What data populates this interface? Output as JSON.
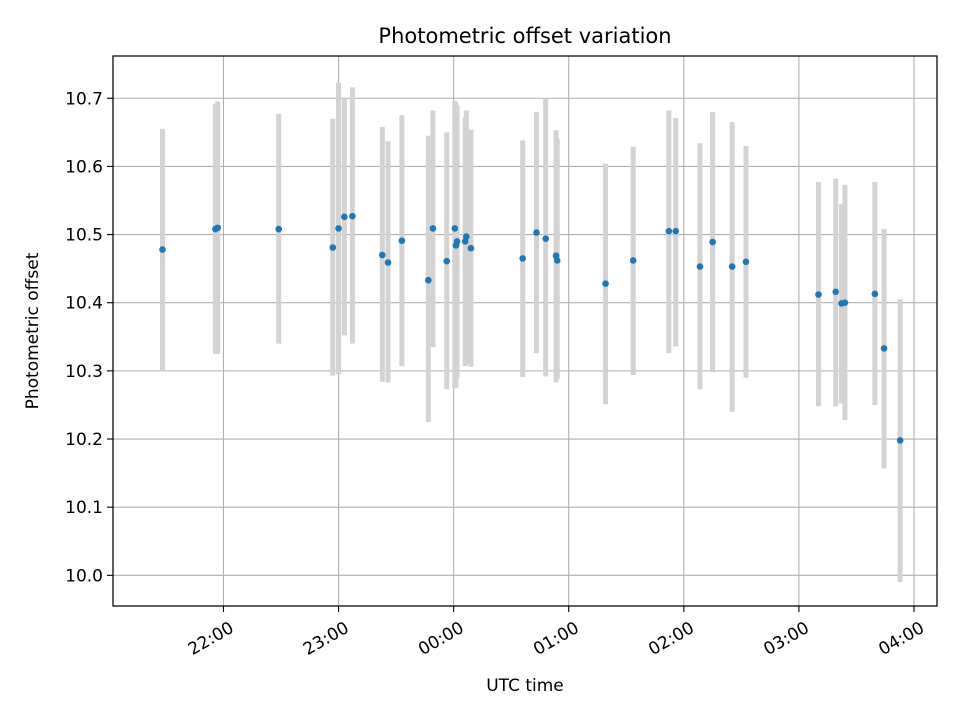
{
  "chart_data": {
    "type": "scatter",
    "title": "Photometric offset variation",
    "xlabel": "UTC time",
    "ylabel": "Photometric offset",
    "grid": true,
    "x_ticks": [
      "22:00",
      "23:00",
      "00:00",
      "01:00",
      "02:00",
      "03:00",
      "04:00"
    ],
    "y_ticks": [
      "10.0",
      "10.1",
      "10.2",
      "10.3",
      "10.4",
      "10.5",
      "10.6",
      "10.7"
    ],
    "x_unit": "hours_after_midnight",
    "xlim": [
      -2.96,
      4.2
    ],
    "ylim": [
      9.955,
      10.762
    ],
    "colors": {
      "point": "#1f77b4",
      "errorbar": "#d3d3d3",
      "grid": "#b0b0b0"
    },
    "points": [
      {
        "x": -2.53,
        "y": 10.478,
        "ylo": 10.3,
        "yhi": 10.655
      },
      {
        "x": -2.07,
        "y": 10.508,
        "ylo": 10.325,
        "yhi": 10.692
      },
      {
        "x": -2.05,
        "y": 10.51,
        "ylo": 10.325,
        "yhi": 10.695
      },
      {
        "x": -1.52,
        "y": 10.508,
        "ylo": 10.34,
        "yhi": 10.677
      },
      {
        "x": -1.05,
        "y": 10.481,
        "ylo": 10.293,
        "yhi": 10.67
      },
      {
        "x": -1.0,
        "y": 10.509,
        "ylo": 10.295,
        "yhi": 10.723
      },
      {
        "x": -0.95,
        "y": 10.526,
        "ylo": 10.352,
        "yhi": 10.7
      },
      {
        "x": -0.88,
        "y": 10.527,
        "ylo": 10.34,
        "yhi": 10.716
      },
      {
        "x": -0.62,
        "y": 10.47,
        "ylo": 10.284,
        "yhi": 10.658
      },
      {
        "x": -0.57,
        "y": 10.459,
        "ylo": 10.283,
        "yhi": 10.637
      },
      {
        "x": -0.45,
        "y": 10.491,
        "ylo": 10.307,
        "yhi": 10.675
      },
      {
        "x": -0.22,
        "y": 10.433,
        "ylo": 10.225,
        "yhi": 10.645
      },
      {
        "x": -0.18,
        "y": 10.509,
        "ylo": 10.335,
        "yhi": 10.682
      },
      {
        "x": -0.06,
        "y": 10.461,
        "ylo": 10.273,
        "yhi": 10.65
      },
      {
        "x": 0.01,
        "y": 10.509,
        "ylo": 10.275,
        "yhi": 10.696
      },
      {
        "x": 0.02,
        "y": 10.484,
        "ylo": 10.275,
        "yhi": 10.693
      },
      {
        "x": 0.03,
        "y": 10.49,
        "ylo": 10.29,
        "yhi": 10.69
      },
      {
        "x": 0.1,
        "y": 10.49,
        "ylo": 10.307,
        "yhi": 10.672
      },
      {
        "x": 0.11,
        "y": 10.497,
        "ylo": 10.31,
        "yhi": 10.682
      },
      {
        "x": 0.15,
        "y": 10.48,
        "ylo": 10.306,
        "yhi": 10.654
      },
      {
        "x": 0.6,
        "y": 10.465,
        "ylo": 10.291,
        "yhi": 10.638
      },
      {
        "x": 0.72,
        "y": 10.503,
        "ylo": 10.326,
        "yhi": 10.68
      },
      {
        "x": 0.8,
        "y": 10.494,
        "ylo": 10.292,
        "yhi": 10.7
      },
      {
        "x": 0.89,
        "y": 10.469,
        "ylo": 10.283,
        "yhi": 10.653
      },
      {
        "x": 0.9,
        "y": 10.462,
        "ylo": 10.288,
        "yhi": 10.64
      },
      {
        "x": 1.32,
        "y": 10.428,
        "ylo": 10.251,
        "yhi": 10.604
      },
      {
        "x": 1.56,
        "y": 10.462,
        "ylo": 10.294,
        "yhi": 10.629
      },
      {
        "x": 1.87,
        "y": 10.505,
        "ylo": 10.326,
        "yhi": 10.682
      },
      {
        "x": 1.93,
        "y": 10.505,
        "ylo": 10.336,
        "yhi": 10.671
      },
      {
        "x": 2.14,
        "y": 10.453,
        "ylo": 10.273,
        "yhi": 10.634
      },
      {
        "x": 2.25,
        "y": 10.489,
        "ylo": 10.298,
        "yhi": 10.68
      },
      {
        "x": 2.42,
        "y": 10.453,
        "ylo": 10.24,
        "yhi": 10.665
      },
      {
        "x": 2.54,
        "y": 10.46,
        "ylo": 10.29,
        "yhi": 10.63
      },
      {
        "x": 3.17,
        "y": 10.412,
        "ylo": 10.248,
        "yhi": 10.577
      },
      {
        "x": 3.32,
        "y": 10.416,
        "ylo": 10.248,
        "yhi": 10.582
      },
      {
        "x": 3.37,
        "y": 10.399,
        "ylo": 10.252,
        "yhi": 10.545
      },
      {
        "x": 3.4,
        "y": 10.4,
        "ylo": 10.228,
        "yhi": 10.573
      },
      {
        "x": 3.66,
        "y": 10.413,
        "ylo": 10.25,
        "yhi": 10.577
      },
      {
        "x": 3.74,
        "y": 10.333,
        "ylo": 10.157,
        "yhi": 10.508
      },
      {
        "x": 3.88,
        "y": 10.198,
        "ylo": 9.99,
        "yhi": 10.405
      }
    ]
  }
}
